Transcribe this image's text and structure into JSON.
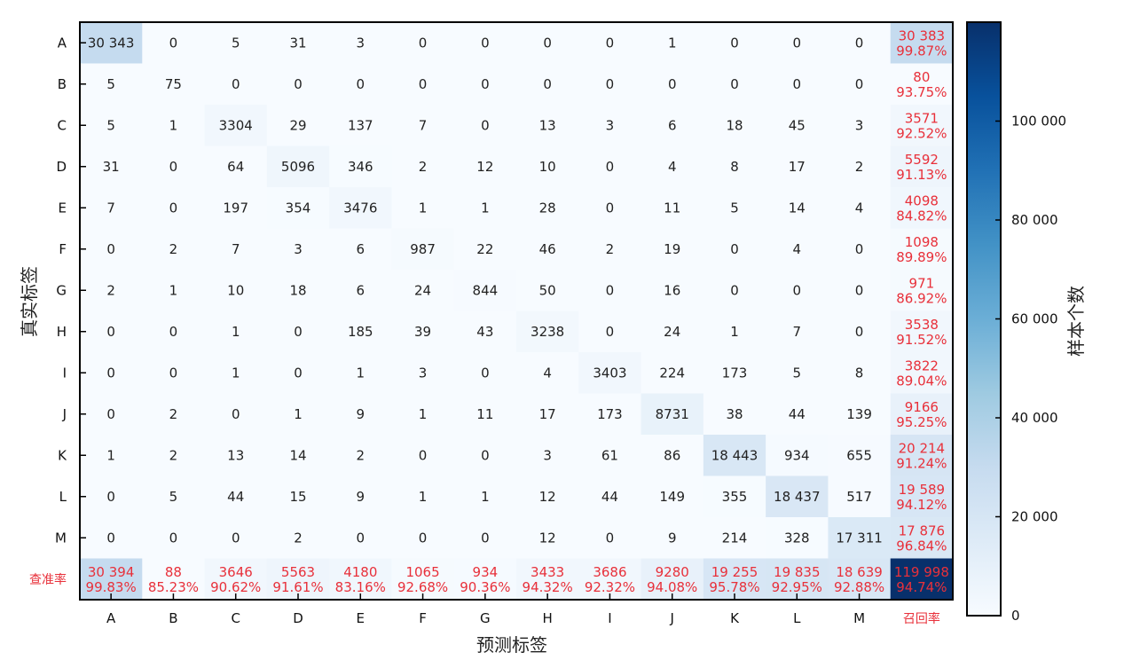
{
  "chart_data": {
    "type": "heatmap",
    "xlabel": "预测标签",
    "ylabel": "真实标签",
    "colorbar_label": "样本个数",
    "colorbar_ticks": [
      "0",
      "20 000",
      "40 000",
      "60 000",
      "80 000",
      "100 000"
    ],
    "colorbar_tick_values": [
      0,
      20000,
      40000,
      60000,
      80000,
      100000
    ],
    "colorbar_max": 119998,
    "colormap": "Blues",
    "labels": [
      "A",
      "B",
      "C",
      "D",
      "E",
      "F",
      "G",
      "H",
      "I",
      "J",
      "K",
      "L",
      "M"
    ],
    "recall_label": "召回率",
    "precision_label": "查准率",
    "matrix": [
      [
        30343,
        0,
        5,
        31,
        3,
        0,
        0,
        0,
        0,
        1,
        0,
        0,
        0
      ],
      [
        5,
        75,
        0,
        0,
        0,
        0,
        0,
        0,
        0,
        0,
        0,
        0,
        0
      ],
      [
        5,
        1,
        3304,
        29,
        137,
        7,
        0,
        13,
        3,
        6,
        18,
        45,
        3
      ],
      [
        31,
        0,
        64,
        5096,
        346,
        2,
        12,
        10,
        0,
        4,
        8,
        17,
        2
      ],
      [
        7,
        0,
        197,
        354,
        3476,
        1,
        1,
        28,
        0,
        11,
        5,
        14,
        4
      ],
      [
        0,
        2,
        7,
        3,
        6,
        987,
        22,
        46,
        2,
        19,
        0,
        4,
        0
      ],
      [
        2,
        1,
        10,
        18,
        6,
        24,
        844,
        50,
        0,
        16,
        0,
        0,
        0
      ],
      [
        0,
        0,
        1,
        0,
        185,
        39,
        43,
        3238,
        0,
        24,
        1,
        7,
        0
      ],
      [
        0,
        0,
        1,
        0,
        1,
        3,
        0,
        4,
        3403,
        224,
        173,
        5,
        8
      ],
      [
        0,
        2,
        0,
        1,
        9,
        1,
        11,
        17,
        173,
        8731,
        38,
        44,
        139
      ],
      [
        1,
        2,
        13,
        14,
        2,
        0,
        0,
        3,
        61,
        86,
        18443,
        934,
        655
      ],
      [
        0,
        5,
        44,
        15,
        9,
        1,
        1,
        12,
        44,
        149,
        355,
        18437,
        517
      ],
      [
        0,
        0,
        0,
        2,
        0,
        0,
        0,
        12,
        0,
        9,
        214,
        328,
        17311
      ]
    ],
    "matrix_text": [
      [
        "30 343",
        "0",
        "5",
        "31",
        "3",
        "0",
        "0",
        "0",
        "0",
        "1",
        "0",
        "0",
        "0"
      ],
      [
        "5",
        "75",
        "0",
        "0",
        "0",
        "0",
        "0",
        "0",
        "0",
        "0",
        "0",
        "0",
        "0"
      ],
      [
        "5",
        "1",
        "3304",
        "29",
        "137",
        "7",
        "0",
        "13",
        "3",
        "6",
        "18",
        "45",
        "3"
      ],
      [
        "31",
        "0",
        "64",
        "5096",
        "346",
        "2",
        "12",
        "10",
        "0",
        "4",
        "8",
        "17",
        "2"
      ],
      [
        "7",
        "0",
        "197",
        "354",
        "3476",
        "1",
        "1",
        "28",
        "0",
        "11",
        "5",
        "14",
        "4"
      ],
      [
        "0",
        "2",
        "7",
        "3",
        "6",
        "987",
        "22",
        "46",
        "2",
        "19",
        "0",
        "4",
        "0"
      ],
      [
        "2",
        "1",
        "10",
        "18",
        "6",
        "24",
        "844",
        "50",
        "0",
        "16",
        "0",
        "0",
        "0"
      ],
      [
        "0",
        "0",
        "1",
        "0",
        "185",
        "39",
        "43",
        "3238",
        "0",
        "24",
        "1",
        "7",
        "0"
      ],
      [
        "0",
        "0",
        "1",
        "0",
        "1",
        "3",
        "0",
        "4",
        "3403",
        "224",
        "173",
        "5",
        "8"
      ],
      [
        "0",
        "2",
        "0",
        "1",
        "9",
        "1",
        "11",
        "17",
        "173",
        "8731",
        "38",
        "44",
        "139"
      ],
      [
        "1",
        "2",
        "13",
        "14",
        "2",
        "0",
        "0",
        "3",
        "61",
        "86",
        "18 443",
        "934",
        "655"
      ],
      [
        "0",
        "5",
        "44",
        "15",
        "9",
        "1",
        "1",
        "12",
        "44",
        "149",
        "355",
        "18 437",
        "517"
      ],
      [
        "0",
        "0",
        "0",
        "2",
        "0",
        "0",
        "0",
        "12",
        "0",
        "9",
        "214",
        "328",
        "17 311"
      ]
    ],
    "row_totals": [
      30383,
      80,
      3571,
      5592,
      4098,
      1098,
      971,
      3538,
      3822,
      9166,
      20214,
      19589,
      17876
    ],
    "row_totals_text": [
      "30 383",
      "80",
      "3571",
      "5592",
      "4098",
      "1098",
      "971",
      "3538",
      "3822",
      "9166",
      "20 214",
      "19 589",
      "17 876"
    ],
    "recall": [
      "99.87%",
      "93.75%",
      "92.52%",
      "91.13%",
      "84.82%",
      "89.89%",
      "86.92%",
      "91.52%",
      "89.04%",
      "95.25%",
      "91.24%",
      "94.12%",
      "96.84%"
    ],
    "col_totals": [
      30394,
      88,
      3646,
      5563,
      4180,
      1065,
      934,
      3433,
      3686,
      9280,
      19255,
      19835,
      18639
    ],
    "col_totals_text": [
      "30 394",
      "88",
      "3646",
      "5563",
      "4180",
      "1065",
      "934",
      "3433",
      "3686",
      "9280",
      "19 255",
      "19 835",
      "18 639"
    ],
    "precision": [
      "99.83%",
      "85.23%",
      "90.62%",
      "91.61%",
      "83.16%",
      "92.68%",
      "90.36%",
      "94.32%",
      "92.32%",
      "94.08%",
      "95.78%",
      "92.95%",
      "92.88%"
    ],
    "grand_total": 119998,
    "grand_total_text": "119 998",
    "overall_accuracy": "94.74%",
    "red_text_color": "#e8303a",
    "dark_text_color": "#222222",
    "light_text_color": "#ffffff"
  }
}
